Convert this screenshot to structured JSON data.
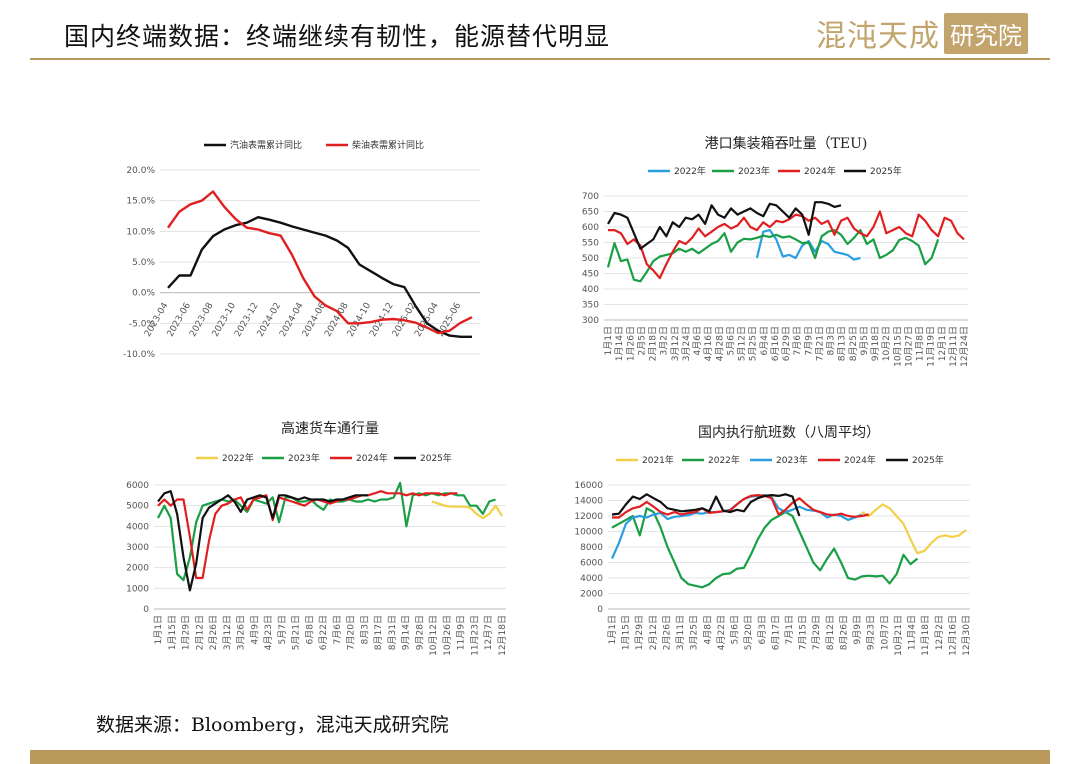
{
  "header": {
    "title": "国内终端数据：终端继续有韧性，能源替代明显",
    "logo_main": "混沌天成",
    "logo_sub": "研究院"
  },
  "footer": {
    "source": "数据来源：Bloomberg，混沌天成研究院"
  },
  "colors": {
    "gold": "#b8995a",
    "black": "#111111",
    "red": "#e02020",
    "blue": "#2a9fe0",
    "green": "#1a9e46",
    "yellow": "#f2d04a"
  },
  "chart_data": [
    {
      "id": "chart1",
      "type": "line",
      "title": "",
      "legend": [
        "汽油表需累计同比",
        "柴油表需累计同比"
      ],
      "legend_position": "top",
      "x_tick_labels": [
        "2023-04",
        "2023-06",
        "2023-08",
        "2023-10",
        "2023-12",
        "2024-02",
        "2024-04",
        "2024-06",
        "2024-08",
        "2024-10",
        "2024-12",
        "2025-02",
        "2025-04",
        "2025-06"
      ],
      "y_ticks": [
        "20.0%",
        "15.0%",
        "10.0%",
        "5.0%",
        "0.0%",
        "-5.0%",
        "-10.0%"
      ],
      "ylim": [
        -10,
        20
      ],
      "series": [
        {
          "name": "汽油表需累计同比",
          "color": "#111111",
          "x": [
            "2023-04",
            "2023-05",
            "2023-06",
            "2023-07",
            "2023-08",
            "2023-09",
            "2023-10",
            "2023-11",
            "2023-12",
            "2024-01",
            "2024-02",
            "2024-03",
            "2024-04",
            "2024-05",
            "2024-06",
            "2024-07",
            "2024-08",
            "2024-09",
            "2024-10",
            "2024-11",
            "2024-12",
            "2025-01",
            "2025-02",
            "2025-03",
            "2025-04",
            "2025-05",
            "2025-06",
            "2025-07"
          ],
          "y": [
            0.8,
            2.8,
            2.8,
            7.0,
            9.2,
            10.3,
            11.0,
            11.4,
            12.3,
            11.9,
            11.4,
            10.8,
            10.3,
            9.8,
            9.3,
            8.5,
            7.3,
            4.6,
            3.5,
            2.4,
            1.4,
            0.9,
            -2.2,
            -5.0,
            -6.2,
            -7.0,
            -7.2,
            -7.2
          ]
        },
        {
          "name": "柴油表需累计同比",
          "color": "#e02020",
          "x": [
            "2023-04",
            "2023-05",
            "2023-06",
            "2023-07",
            "2023-08",
            "2023-09",
            "2023-10",
            "2023-11",
            "2023-12",
            "2024-01",
            "2024-02",
            "2024-03",
            "2024-04",
            "2024-05",
            "2024-06",
            "2024-07",
            "2024-08",
            "2024-09",
            "2024-10",
            "2024-11",
            "2024-12",
            "2025-01",
            "2025-02",
            "2025-03",
            "2025-04",
            "2025-05",
            "2025-06",
            "2025-07"
          ],
          "y": [
            10.6,
            13.2,
            14.4,
            15.0,
            16.5,
            14.0,
            12.0,
            10.6,
            10.3,
            9.7,
            9.3,
            6.2,
            2.4,
            -0.6,
            -2.1,
            -3.0,
            -5.0,
            -5.0,
            -4.8,
            -4.4,
            -4.3,
            -4.5,
            -4.9,
            -5.7,
            -6.6,
            -6.2,
            -4.9,
            -4.0
          ]
        }
      ]
    },
    {
      "id": "chart2",
      "type": "line",
      "title": "港口集装箱吞吐量（TEU)",
      "legend": [
        "2022年",
        "2023年",
        "2024年",
        "2025年"
      ],
      "legend_position": "top",
      "x_tick_labels": [
        "1月1日",
        "1月14日",
        "1月26日",
        "2月5日",
        "2月18日",
        "3月2日",
        "3月12日",
        "3月24日",
        "4月6日",
        "4月16日",
        "4月28日",
        "5月6日",
        "5月12日",
        "5月25日",
        "6月4日",
        "6月16日",
        "6月29日",
        "7月6日",
        "7月9日",
        "7月21日",
        "8月3日",
        "8月13日",
        "8月25日",
        "9月5日",
        "9月18日",
        "10月2日",
        "10月15日",
        "10月27日",
        "11月8日",
        "11月19日",
        "12月1日",
        "12月11日",
        "12月24日"
      ],
      "y_ticks": [
        700,
        650,
        600,
        550,
        500,
        450,
        400,
        350,
        300
      ],
      "ylim": [
        300,
        700
      ],
      "series": [
        {
          "name": "2022年",
          "color": "#2a9fe0",
          "x_start": 23,
          "values": [
            500,
            585,
            590,
            560,
            505,
            510,
            500,
            540,
            555,
            520,
            555,
            545,
            520,
            515,
            510,
            495,
            500
          ]
        },
        {
          "name": "2023年",
          "color": "#1a9e46",
          "x_start": 0,
          "values": [
            470,
            548,
            490,
            495,
            430,
            425,
            455,
            490,
            505,
            510,
            515,
            530,
            520,
            530,
            515,
            530,
            545,
            555,
            580,
            520,
            550,
            562,
            560,
            565,
            572,
            568,
            575,
            566,
            570,
            560,
            548,
            550,
            500,
            570,
            585,
            590,
            575,
            545,
            565,
            590,
            545,
            560,
            500,
            510,
            525,
            558,
            565,
            555,
            540,
            480,
            500,
            560
          ]
        },
        {
          "name": "2024年",
          "color": "#e02020",
          "x_start": 0,
          "values": [
            590,
            590,
            580,
            545,
            560,
            540,
            480,
            460,
            435,
            480,
            520,
            555,
            545,
            565,
            595,
            570,
            585,
            600,
            610,
            595,
            605,
            630,
            600,
            590,
            615,
            600,
            620,
            615,
            625,
            640,
            635,
            620,
            630,
            610,
            620,
            575,
            620,
            630,
            595,
            580,
            570,
            600,
            650,
            580,
            590,
            600,
            580,
            570,
            640,
            620,
            590,
            570,
            630,
            620,
            580,
            560
          ]
        },
        {
          "name": "2025年",
          "color": "#111111",
          "x_start": 0,
          "values": [
            610,
            645,
            640,
            630,
            580,
            530,
            545,
            560,
            600,
            570,
            615,
            600,
            630,
            625,
            640,
            610,
            670,
            640,
            630,
            660,
            640,
            650,
            660,
            645,
            635,
            675,
            670,
            650,
            630,
            660,
            640,
            575,
            680,
            680,
            675,
            665,
            670
          ]
        }
      ]
    },
    {
      "id": "chart3",
      "type": "line",
      "title": "高速货车通行量",
      "legend": [
        "2022年",
        "2023年",
        "2024年",
        "2025年"
      ],
      "legend_position": "top",
      "x_tick_labels": [
        "1月1日",
        "1月15日",
        "1月29日",
        "2月12日",
        "2月26日",
        "3月12日",
        "3月26日",
        "4月9日",
        "4月23日",
        "5月7日",
        "5月21日",
        "6月8日",
        "6月22日",
        "7月6日",
        "7月20日",
        "8月3日",
        "8月17日",
        "8月31日",
        "9月14日",
        "9月28日",
        "10月12日",
        "10月26日",
        "11月9日",
        "11月23日",
        "12月7日",
        "12月18日"
      ],
      "y_ticks": [
        6000,
        5000,
        4000,
        3000,
        2000,
        1000,
        0
      ],
      "ylim": [
        0,
        6000
      ],
      "series": [
        {
          "name": "2022年",
          "color": "#f2d04a",
          "x_start": 43,
          "values": [
            5200,
            5100,
            5000,
            4950,
            4950,
            4950,
            4900,
            4600,
            4400,
            4600,
            5000,
            4500
          ]
        },
        {
          "name": "2023年",
          "color": "#1a9e46",
          "x_start": 0,
          "values": [
            4400,
            5000,
            4400,
            1700,
            1400,
            2500,
            4200,
            5000,
            5100,
            5200,
            5300,
            5200,
            5300,
            5000,
            4700,
            5300,
            5200,
            5100,
            5400,
            4200,
            5400,
            5400,
            5200,
            5200,
            5300,
            5000,
            4800,
            5300,
            5200,
            5200,
            5300,
            5200,
            5200,
            5300,
            5200,
            5300,
            5300,
            5400,
            6100,
            4000,
            5500,
            5600,
            5500,
            5600,
            5500,
            5600,
            5600,
            5500,
            5500,
            5000,
            5000,
            4600,
            5200,
            5300
          ]
        },
        {
          "name": "2024年",
          "color": "#e02020",
          "x_start": 0,
          "values": [
            5000,
            5300,
            5000,
            5300,
            5300,
            3500,
            1500,
            1500,
            3300,
            4600,
            5000,
            5100,
            5300,
            5400,
            4800,
            5300,
            5400,
            5500,
            4300,
            5400,
            5300,
            5200,
            5100,
            5000,
            5200,
            5300,
            5200,
            5100,
            5200,
            5300,
            5300,
            5400,
            5500,
            5500,
            5600,
            5700,
            5600,
            5600,
            5600,
            5500,
            5600,
            5500,
            5600,
            5600,
            5600,
            5500,
            5600,
            5600
          ]
        },
        {
          "name": "2025年",
          "color": "#111111",
          "x_start": 0,
          "values": [
            5200,
            5600,
            5700,
            4600,
            2500,
            900,
            2200,
            4400,
            4900,
            5100,
            5300,
            5500,
            5200,
            4700,
            5300,
            5400,
            5500,
            5400,
            4400,
            5500,
            5500,
            5400,
            5300,
            5400,
            5300,
            5300,
            5300,
            5200,
            5300,
            5300,
            5400,
            5500,
            5500,
            5500
          ]
        }
      ]
    },
    {
      "id": "chart4",
      "type": "line",
      "title": "国内执行航班数（八周平均）",
      "legend": [
        "2021年",
        "2022年",
        "2023年",
        "2024年",
        "2025年"
      ],
      "legend_position": "top",
      "x_tick_labels": [
        "1月1日",
        "1月15日",
        "1月29日",
        "2月12日",
        "2月26日",
        "3月11日",
        "3月25日",
        "4月8日",
        "4月22日",
        "5月6日",
        "5月20日",
        "6月3日",
        "6月17日",
        "7月1日",
        "7月15日",
        "7月29日",
        "8月12日",
        "8月26日",
        "9月9日",
        "9月23日",
        "10月7日",
        "10月21日",
        "11月4日",
        "11月18日",
        "12月2日",
        "12月16日",
        "12月30日"
      ],
      "y_ticks": [
        16000,
        14000,
        12000,
        10000,
        8000,
        6000,
        4000,
        2000,
        0
      ],
      "ylim": [
        0,
        16000
      ],
      "series": [
        {
          "name": "2021年",
          "color": "#f2d04a",
          "x_start": 36,
          "values": [
            12500,
            12000,
            12800,
            13500,
            13000,
            12000,
            11000,
            9000,
            7200,
            7500,
            8500,
            9300,
            9500,
            9300,
            9500,
            10200
          ]
        },
        {
          "name": "2022年",
          "color": "#1a9e46",
          "x_start": 0,
          "values": [
            10500,
            11000,
            11500,
            12000,
            9500,
            13000,
            12500,
            10500,
            8000,
            6000,
            4000,
            3200,
            3000,
            2800,
            3200,
            4000,
            4500,
            4600,
            5200,
            5300,
            7000,
            9000,
            10500,
            11500,
            12000,
            12500,
            12000,
            10000,
            8000,
            6000,
            5000,
            6500,
            7800,
            6000,
            4000,
            3800,
            4200,
            4300,
            4200,
            4300,
            3300,
            4500,
            7000,
            5800,
            6500
          ]
        },
        {
          "name": "2023年",
          "color": "#2a9fe0",
          "x_start": 0,
          "values": [
            6500,
            8500,
            11000,
            11800,
            12000,
            11800,
            12200,
            12400,
            11600,
            11900,
            12000,
            12100,
            12400,
            12300,
            12500,
            12500,
            12600,
            12800,
            13500,
            14200,
            14500,
            14600,
            14700,
            14400,
            13000,
            12500,
            12800,
            13200,
            12800,
            12700,
            12500,
            11800,
            12200,
            12000,
            11500,
            11800,
            12200
          ]
        },
        {
          "name": "2024年",
          "color": "#e02020",
          "x_start": 0,
          "values": [
            11800,
            11800,
            12500,
            13000,
            13200,
            13800,
            13200,
            12500,
            12200,
            12500,
            12200,
            12400,
            12500,
            13000,
            12400,
            12500,
            12600,
            12700,
            13500,
            14200,
            14600,
            14700,
            14600,
            14300,
            12200,
            12800,
            13700,
            14300,
            13500,
            12800,
            12500,
            12200,
            12100,
            12300,
            12000,
            11900,
            12000,
            12200
          ]
        },
        {
          "name": "2025年",
          "color": "#111111",
          "x_start": 0,
          "values": [
            12200,
            12300,
            13500,
            14500,
            14200,
            14800,
            14300,
            13800,
            13000,
            12800,
            12600,
            12700,
            12800,
            13000,
            12600,
            14500,
            12700,
            12500,
            12800,
            12600,
            13800,
            14300,
            14600,
            14700,
            14600,
            14800,
            14500,
            12000
          ]
        }
      ]
    }
  ]
}
